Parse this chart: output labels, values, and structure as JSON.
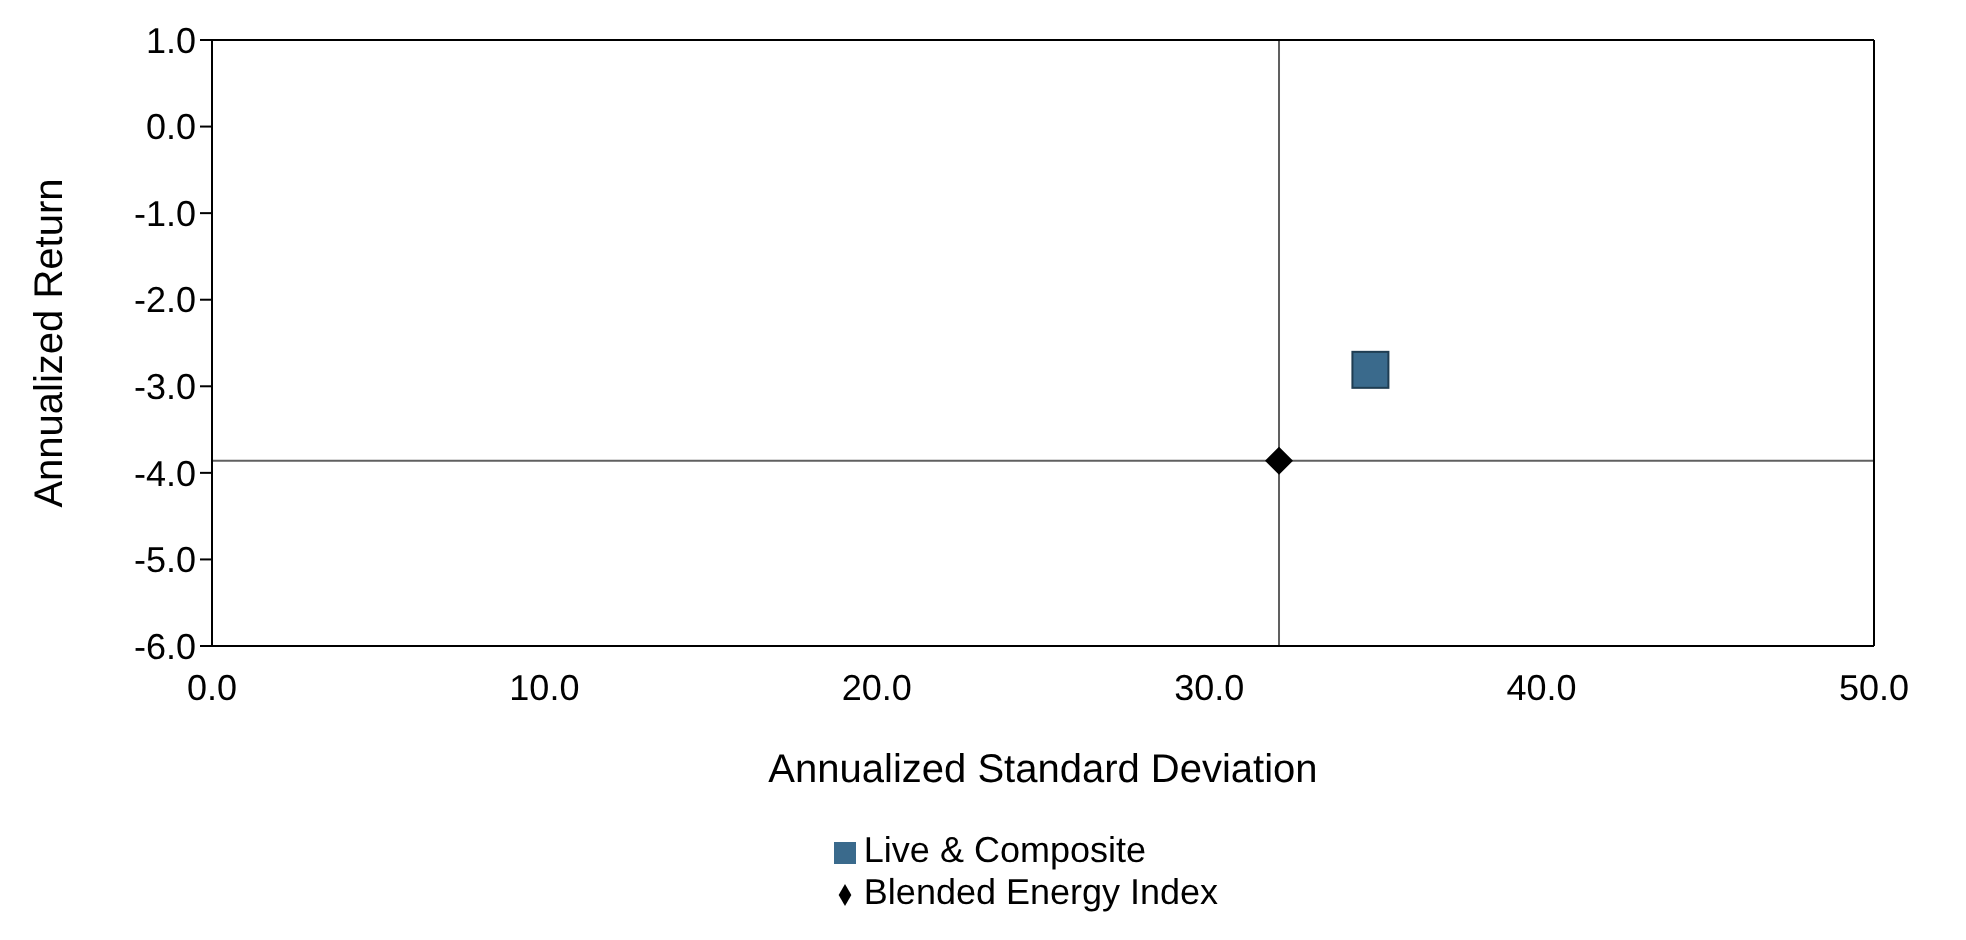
{
  "chart_data": {
    "type": "scatter",
    "xlabel": "Annualized Standard Deviation",
    "ylabel": "Annualized Return",
    "xlim": [
      0,
      50
    ],
    "ylim": [
      -6,
      1
    ],
    "xticks": [
      {
        "value": 0,
        "label": "0.0"
      },
      {
        "value": 10,
        "label": "10.0"
      },
      {
        "value": 20,
        "label": "20.0"
      },
      {
        "value": 30,
        "label": "30.0"
      },
      {
        "value": 40,
        "label": "40.0"
      },
      {
        "value": 50,
        "label": "50.0"
      }
    ],
    "yticks": [
      {
        "value": 1,
        "label": "1.0"
      },
      {
        "value": 0,
        "label": "0.0"
      },
      {
        "value": -1,
        "label": "-1.0"
      },
      {
        "value": -2,
        "label": "-2.0"
      },
      {
        "value": -3,
        "label": "-3.0"
      },
      {
        "value": -4,
        "label": "-4.0"
      },
      {
        "value": -5,
        "label": "-5.0"
      },
      {
        "value": -6,
        "label": "-6.0"
      }
    ],
    "series": [
      {
        "name": "Live & Composite",
        "color": "#3a6a8c",
        "marker": "square",
        "x": [
          34.85
        ],
        "values": [
          -2.81
        ]
      },
      {
        "name": "Blended Energy Index",
        "color": "#000000",
        "marker": "diamond",
        "x": [
          32.1
        ],
        "values": [
          -3.86
        ]
      }
    ],
    "ref_lines": [
      {
        "axis": "x",
        "value": 32.1,
        "color": "#606060"
      },
      {
        "axis": "y",
        "value": -3.86,
        "color": "#606060"
      }
    ],
    "legend": "bottom"
  }
}
